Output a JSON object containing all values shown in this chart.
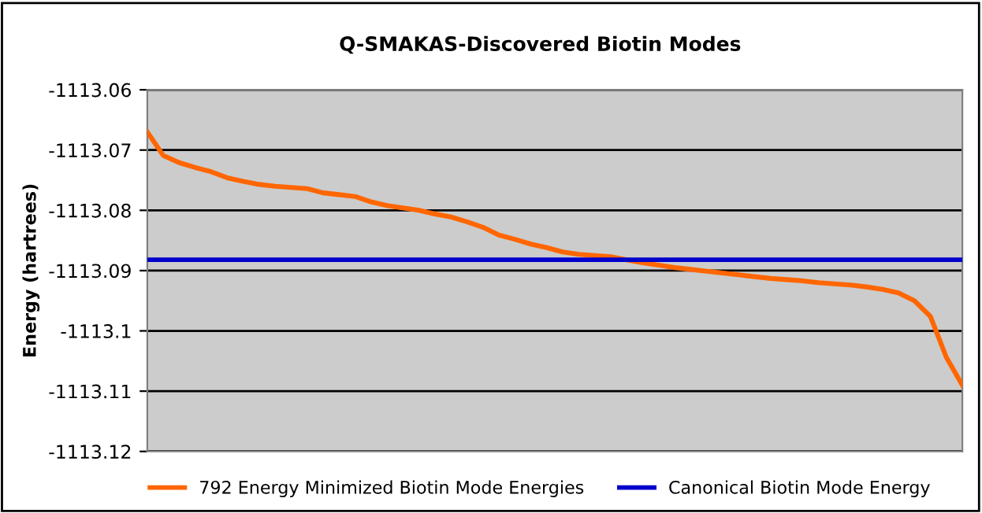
{
  "chart_data": {
    "type": "line",
    "title": "Q-SMAKAS-Discovered Biotin Modes",
    "ylabel": "Energy (hartrees)",
    "ylim": [
      -1113.12,
      -1113.06
    ],
    "yticks": [
      -1113.06,
      -1113.07,
      -1113.08,
      -1113.09,
      -1113.1,
      -1113.11,
      -1113.12
    ],
    "tick_labels": "y",
    "grid": "y",
    "legend": "bottom",
    "marker": "none",
    "line_style": "solid",
    "categories": [
      null,
      null,
      null,
      null,
      null,
      null,
      null,
      null,
      null,
      null,
      null,
      null,
      null,
      null,
      null,
      null,
      null,
      null,
      null,
      null,
      null,
      null,
      null,
      null,
      null,
      null,
      null,
      null,
      null,
      null,
      null,
      null,
      null,
      null,
      null,
      null,
      null,
      null,
      null,
      null,
      null,
      null,
      null,
      null,
      null,
      null,
      null,
      null,
      null,
      null,
      null,
      null
    ],
    "series": [
      {
        "name": "792 Energy Minimized Biotin Mode Energies",
        "color": "#ff6600",
        "values": [
          -1113.067,
          -1113.0709,
          -1113.0721,
          -1113.0729,
          -1113.0736,
          -1113.0746,
          -1113.0752,
          -1113.0757,
          -1113.076,
          -1113.0762,
          -1113.0764,
          -1113.0771,
          -1113.0774,
          -1113.0777,
          -1113.0786,
          -1113.0792,
          -1113.0796,
          -1113.08,
          -1113.0806,
          -1113.0811,
          -1113.0819,
          -1113.0828,
          -1113.0841,
          -1113.0848,
          -1113.0856,
          -1113.0862,
          -1113.0869,
          -1113.0873,
          -1113.0875,
          -1113.0877,
          -1113.0882,
          -1113.0887,
          -1113.0891,
          -1113.0895,
          -1113.0898,
          -1113.0901,
          -1113.0904,
          -1113.0907,
          -1113.091,
          -1113.0913,
          -1113.0915,
          -1113.0917,
          -1113.092,
          -1113.0922,
          -1113.0924,
          -1113.0927,
          -1113.0931,
          -1113.0937,
          -1113.095,
          -1113.0976,
          -1113.1044,
          -1113.109
        ]
      }
    ],
    "ref_lines": [
      {
        "axis": "y",
        "value": -1113.0882,
        "label": "Canonical Biotin Mode Energy",
        "color": "#0000cc",
        "line_style": "solid"
      }
    ]
  }
}
